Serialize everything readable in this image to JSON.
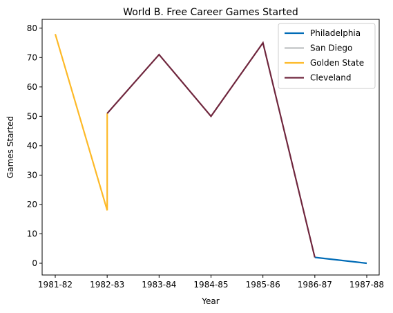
{
  "chart_data": {
    "type": "line",
    "title": "World B. Free Career Games Started",
    "xlabel": "Year",
    "ylabel": "Games Started",
    "categories": [
      "1981-82",
      "1982-83",
      "1983-84",
      "1984-85",
      "1985-86",
      "1986-87",
      "1987-88"
    ],
    "yticks": [
      0,
      10,
      20,
      30,
      40,
      50,
      60,
      70,
      80
    ],
    "ylim": [
      -4,
      83
    ],
    "grid": false,
    "legend_position": "top-right",
    "series": [
      {
        "name": "Philadelphia",
        "color": "#006BB6",
        "points": [
          {
            "x": "1986-87",
            "y": 2
          },
          {
            "x": "1987-88",
            "y": 0
          }
        ]
      },
      {
        "name": "San Diego",
        "color": "#BEC0C2",
        "points": []
      },
      {
        "name": "Golden State",
        "color": "#FDB927",
        "points": [
          {
            "x": "1981-82",
            "y": 78
          },
          {
            "x": "1982-83",
            "y": 18
          },
          {
            "x": "1982-83",
            "y": 51
          }
        ]
      },
      {
        "name": "Cleveland",
        "color": "#6F263D",
        "points": [
          {
            "x": "1982-83",
            "y": 51
          },
          {
            "x": "1983-84",
            "y": 71
          },
          {
            "x": "1984-85",
            "y": 50
          },
          {
            "x": "1985-86",
            "y": 75
          },
          {
            "x": "1986-87",
            "y": 2
          }
        ]
      }
    ]
  }
}
